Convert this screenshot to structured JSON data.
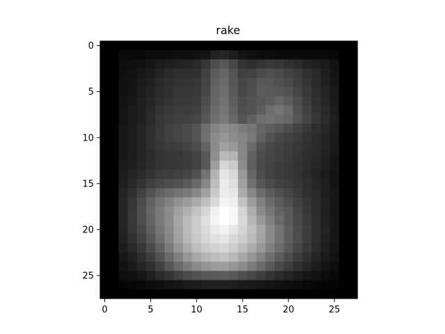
{
  "chart_data": {
    "type": "heatmap",
    "title": "rake",
    "xlabel": "",
    "ylabel": "",
    "colormap": "gray",
    "xlim": [
      -0.5,
      27.5
    ],
    "ylim": [
      27.5,
      -0.5
    ],
    "xticks": [
      0,
      5,
      10,
      15,
      20,
      25
    ],
    "yticks": [
      0,
      5,
      10,
      15,
      20,
      25
    ],
    "rows": 28,
    "cols": 28,
    "value_range": [
      0,
      1
    ],
    "values": [
      [
        0.0,
        0.0,
        0.0,
        0.0,
        0.0,
        0.0,
        0.0,
        0.0,
        0.0,
        0.0,
        0.0,
        0.0,
        0.0,
        0.0,
        0.0,
        0.0,
        0.0,
        0.0,
        0.0,
        0.0,
        0.0,
        0.0,
        0.0,
        0.0,
        0.0,
        0.0,
        0.0,
        0.0
      ],
      [
        0.0,
        0.0,
        0.04,
        0.04,
        0.04,
        0.05,
        0.05,
        0.05,
        0.06,
        0.06,
        0.07,
        0.08,
        0.13,
        0.15,
        0.11,
        0.08,
        0.06,
        0.05,
        0.05,
        0.04,
        0.04,
        0.04,
        0.04,
        0.04,
        0.04,
        0.03,
        0.0,
        0.0
      ],
      [
        0.0,
        0.0,
        0.05,
        0.06,
        0.07,
        0.09,
        0.11,
        0.12,
        0.13,
        0.14,
        0.16,
        0.21,
        0.3,
        0.34,
        0.28,
        0.2,
        0.18,
        0.2,
        0.22,
        0.21,
        0.19,
        0.17,
        0.14,
        0.12,
        0.1,
        0.07,
        0.0,
        0.0
      ],
      [
        0.0,
        0.0,
        0.06,
        0.07,
        0.09,
        0.11,
        0.14,
        0.16,
        0.18,
        0.18,
        0.19,
        0.26,
        0.36,
        0.4,
        0.33,
        0.25,
        0.26,
        0.29,
        0.31,
        0.29,
        0.26,
        0.23,
        0.19,
        0.16,
        0.12,
        0.08,
        0.0,
        0.0
      ],
      [
        0.0,
        0.0,
        0.07,
        0.08,
        0.1,
        0.13,
        0.16,
        0.18,
        0.2,
        0.2,
        0.21,
        0.27,
        0.38,
        0.42,
        0.34,
        0.27,
        0.3,
        0.34,
        0.34,
        0.32,
        0.29,
        0.25,
        0.21,
        0.17,
        0.13,
        0.09,
        0.0,
        0.0
      ],
      [
        0.0,
        0.0,
        0.07,
        0.08,
        0.11,
        0.14,
        0.17,
        0.19,
        0.21,
        0.21,
        0.22,
        0.28,
        0.39,
        0.43,
        0.35,
        0.28,
        0.31,
        0.36,
        0.35,
        0.34,
        0.32,
        0.27,
        0.22,
        0.18,
        0.14,
        0.1,
        0.0,
        0.0
      ],
      [
        0.0,
        0.0,
        0.08,
        0.09,
        0.12,
        0.15,
        0.18,
        0.2,
        0.22,
        0.22,
        0.23,
        0.3,
        0.4,
        0.44,
        0.37,
        0.3,
        0.32,
        0.34,
        0.37,
        0.4,
        0.36,
        0.3,
        0.24,
        0.19,
        0.15,
        0.1,
        0.0,
        0.0
      ],
      [
        0.0,
        0.0,
        0.08,
        0.1,
        0.13,
        0.16,
        0.2,
        0.22,
        0.24,
        0.24,
        0.25,
        0.32,
        0.42,
        0.46,
        0.39,
        0.31,
        0.32,
        0.37,
        0.43,
        0.46,
        0.41,
        0.32,
        0.26,
        0.2,
        0.16,
        0.11,
        0.0,
        0.0
      ],
      [
        0.0,
        0.0,
        0.08,
        0.1,
        0.13,
        0.17,
        0.21,
        0.23,
        0.25,
        0.26,
        0.27,
        0.34,
        0.44,
        0.48,
        0.41,
        0.33,
        0.38,
        0.43,
        0.45,
        0.43,
        0.4,
        0.33,
        0.27,
        0.21,
        0.17,
        0.12,
        0.0,
        0.0
      ],
      [
        0.0,
        0.0,
        0.09,
        0.11,
        0.14,
        0.18,
        0.22,
        0.25,
        0.27,
        0.29,
        0.33,
        0.43,
        0.52,
        0.56,
        0.53,
        0.49,
        0.46,
        0.4,
        0.37,
        0.34,
        0.3,
        0.26,
        0.22,
        0.18,
        0.15,
        0.11,
        0.0,
        0.0
      ],
      [
        0.0,
        0.0,
        0.09,
        0.11,
        0.14,
        0.18,
        0.22,
        0.25,
        0.27,
        0.29,
        0.33,
        0.44,
        0.55,
        0.59,
        0.55,
        0.52,
        0.48,
        0.38,
        0.32,
        0.28,
        0.26,
        0.23,
        0.2,
        0.17,
        0.14,
        0.1,
        0.0,
        0.0
      ],
      [
        0.0,
        0.0,
        0.09,
        0.11,
        0.14,
        0.18,
        0.21,
        0.23,
        0.24,
        0.26,
        0.3,
        0.39,
        0.55,
        0.63,
        0.6,
        0.52,
        0.42,
        0.32,
        0.28,
        0.26,
        0.24,
        0.22,
        0.19,
        0.17,
        0.14,
        0.1,
        0.0,
        0.0
      ],
      [
        0.0,
        0.0,
        0.09,
        0.11,
        0.14,
        0.17,
        0.2,
        0.21,
        0.22,
        0.23,
        0.26,
        0.34,
        0.56,
        0.73,
        0.7,
        0.53,
        0.38,
        0.3,
        0.27,
        0.25,
        0.23,
        0.21,
        0.18,
        0.16,
        0.13,
        0.09,
        0.0,
        0.0
      ],
      [
        0.0,
        0.0,
        0.1,
        0.12,
        0.15,
        0.18,
        0.2,
        0.21,
        0.22,
        0.23,
        0.26,
        0.35,
        0.62,
        0.84,
        0.79,
        0.55,
        0.37,
        0.29,
        0.26,
        0.24,
        0.22,
        0.2,
        0.18,
        0.15,
        0.12,
        0.09,
        0.0,
        0.0
      ],
      [
        0.0,
        0.0,
        0.11,
        0.14,
        0.17,
        0.2,
        0.23,
        0.24,
        0.25,
        0.27,
        0.32,
        0.45,
        0.7,
        0.9,
        0.85,
        0.6,
        0.4,
        0.3,
        0.26,
        0.24,
        0.22,
        0.2,
        0.17,
        0.14,
        0.11,
        0.08,
        0.0,
        0.0
      ],
      [
        0.0,
        0.0,
        0.12,
        0.16,
        0.2,
        0.25,
        0.28,
        0.3,
        0.32,
        0.35,
        0.41,
        0.53,
        0.74,
        0.92,
        0.87,
        0.63,
        0.44,
        0.34,
        0.29,
        0.26,
        0.24,
        0.21,
        0.18,
        0.15,
        0.12,
        0.08,
        0.0,
        0.0
      ],
      [
        0.0,
        0.0,
        0.14,
        0.19,
        0.25,
        0.32,
        0.38,
        0.42,
        0.45,
        0.48,
        0.54,
        0.63,
        0.79,
        0.93,
        0.9,
        0.68,
        0.53,
        0.42,
        0.36,
        0.31,
        0.27,
        0.23,
        0.19,
        0.16,
        0.12,
        0.09,
        0.0,
        0.0
      ],
      [
        0.0,
        0.0,
        0.15,
        0.21,
        0.29,
        0.38,
        0.45,
        0.51,
        0.57,
        0.61,
        0.67,
        0.75,
        0.85,
        0.96,
        0.94,
        0.76,
        0.62,
        0.5,
        0.42,
        0.36,
        0.31,
        0.26,
        0.21,
        0.17,
        0.13,
        0.09,
        0.0,
        0.0
      ],
      [
        0.0,
        0.0,
        0.15,
        0.22,
        0.3,
        0.4,
        0.48,
        0.55,
        0.63,
        0.69,
        0.76,
        0.84,
        0.94,
        1.0,
        0.97,
        0.83,
        0.68,
        0.55,
        0.46,
        0.39,
        0.34,
        0.28,
        0.22,
        0.17,
        0.13,
        0.09,
        0.0,
        0.0
      ],
      [
        0.0,
        0.0,
        0.15,
        0.22,
        0.3,
        0.39,
        0.48,
        0.55,
        0.65,
        0.73,
        0.8,
        0.88,
        0.96,
        1.0,
        0.97,
        0.85,
        0.72,
        0.6,
        0.5,
        0.42,
        0.35,
        0.29,
        0.23,
        0.18,
        0.13,
        0.09,
        0.0,
        0.0
      ],
      [
        0.0,
        0.0,
        0.14,
        0.21,
        0.28,
        0.37,
        0.46,
        0.54,
        0.64,
        0.73,
        0.8,
        0.86,
        0.92,
        0.95,
        0.9,
        0.83,
        0.75,
        0.65,
        0.54,
        0.45,
        0.37,
        0.3,
        0.24,
        0.18,
        0.14,
        0.09,
        0.0,
        0.0
      ],
      [
        0.0,
        0.0,
        0.13,
        0.19,
        0.26,
        0.34,
        0.43,
        0.52,
        0.63,
        0.72,
        0.79,
        0.84,
        0.88,
        0.9,
        0.85,
        0.8,
        0.73,
        0.64,
        0.54,
        0.45,
        0.37,
        0.3,
        0.24,
        0.18,
        0.13,
        0.09,
        0.0,
        0.0
      ],
      [
        0.0,
        0.0,
        0.11,
        0.16,
        0.22,
        0.29,
        0.38,
        0.48,
        0.58,
        0.67,
        0.74,
        0.79,
        0.82,
        0.84,
        0.8,
        0.74,
        0.67,
        0.59,
        0.5,
        0.42,
        0.35,
        0.28,
        0.22,
        0.17,
        0.12,
        0.08,
        0.0,
        0.0
      ],
      [
        0.0,
        0.0,
        0.09,
        0.13,
        0.18,
        0.24,
        0.32,
        0.41,
        0.5,
        0.59,
        0.66,
        0.71,
        0.74,
        0.76,
        0.72,
        0.66,
        0.59,
        0.51,
        0.43,
        0.36,
        0.3,
        0.24,
        0.19,
        0.14,
        0.1,
        0.07,
        0.0,
        0.0
      ],
      [
        0.0,
        0.0,
        0.07,
        0.1,
        0.14,
        0.19,
        0.25,
        0.33,
        0.41,
        0.48,
        0.54,
        0.58,
        0.61,
        0.62,
        0.59,
        0.54,
        0.48,
        0.41,
        0.35,
        0.29,
        0.24,
        0.19,
        0.15,
        0.11,
        0.08,
        0.05,
        0.0,
        0.0
      ],
      [
        0.0,
        0.0,
        0.05,
        0.07,
        0.09,
        0.12,
        0.16,
        0.2,
        0.25,
        0.29,
        0.32,
        0.34,
        0.35,
        0.36,
        0.34,
        0.31,
        0.28,
        0.24,
        0.2,
        0.17,
        0.14,
        0.11,
        0.09,
        0.07,
        0.05,
        0.04,
        0.0,
        0.0
      ],
      [
        0.0,
        0.0,
        0.02,
        0.03,
        0.04,
        0.05,
        0.06,
        0.08,
        0.09,
        0.1,
        0.11,
        0.12,
        0.12,
        0.12,
        0.12,
        0.11,
        0.1,
        0.09,
        0.08,
        0.07,
        0.06,
        0.05,
        0.04,
        0.03,
        0.02,
        0.02,
        0.0,
        0.0
      ],
      [
        0.0,
        0.0,
        0.0,
        0.0,
        0.0,
        0.0,
        0.0,
        0.0,
        0.0,
        0.0,
        0.0,
        0.0,
        0.0,
        0.0,
        0.0,
        0.0,
        0.0,
        0.0,
        0.0,
        0.0,
        0.0,
        0.0,
        0.0,
        0.0,
        0.0,
        0.0,
        0.0,
        0.0
      ]
    ]
  }
}
